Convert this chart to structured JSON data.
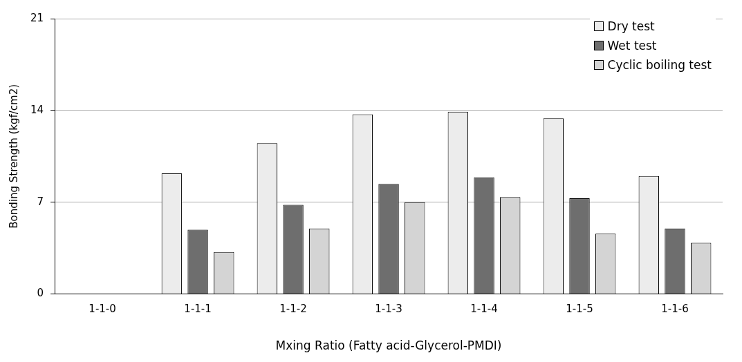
{
  "chart_data": {
    "type": "bar",
    "xlabel": "Mxing Ratio (Fatty acid-Glycerol-PMDI)",
    "ylabel": "Bonding Strength (kgf/cm2)",
    "categories": [
      "1-1-0",
      "1-1-1",
      "1-1-2",
      "1-1-3",
      "1-1-4",
      "1-1-5",
      "1-1-6"
    ],
    "series": [
      {
        "name": "Dry test",
        "color": "#ececec",
        "values": [
          null,
          9.2,
          11.5,
          13.7,
          13.9,
          13.4,
          9.0
        ]
      },
      {
        "name": "Wet test",
        "color": "#6e6e6e",
        "values": [
          null,
          4.9,
          6.8,
          8.4,
          8.9,
          7.3,
          5.0
        ]
      },
      {
        "name": "Cyclic boiling test",
        "color": "#d4d4d4",
        "values": [
          null,
          3.2,
          5.0,
          7.0,
          7.4,
          4.6,
          3.9
        ]
      }
    ],
    "ylim": [
      0,
      21
    ],
    "yticks": [
      0,
      7,
      14,
      21
    ],
    "grid": "y",
    "legend": "top right"
  }
}
